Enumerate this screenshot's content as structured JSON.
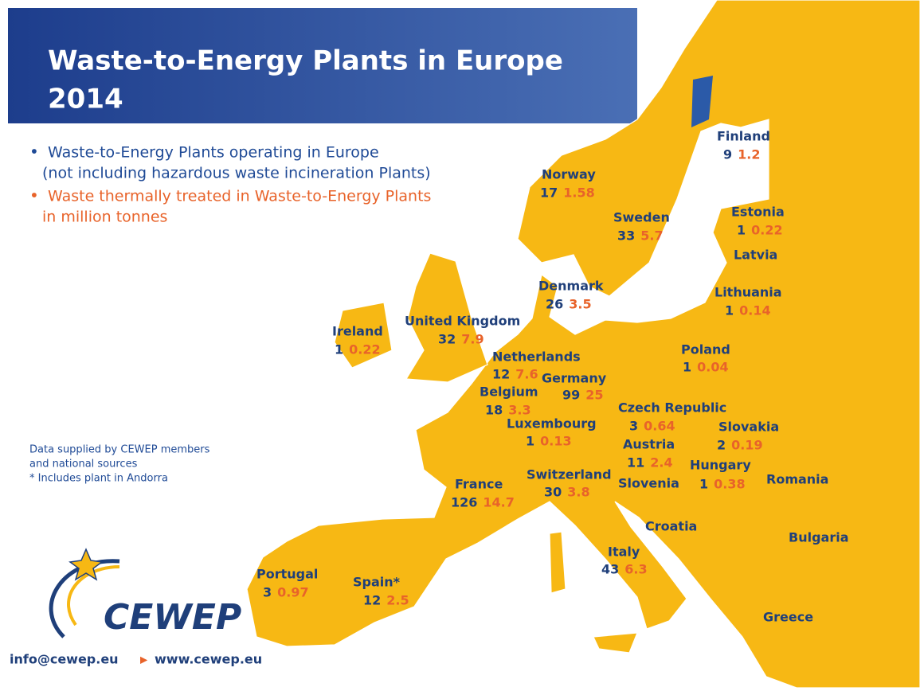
{
  "header": {
    "title": [
      "Waste-to-Energy Plants in Europe",
      "2014"
    ]
  },
  "legend": [
    {
      "lines": [
        "Waste-to-Energy Plants operating in Europe",
        "(not including hazardous waste incineration Plants)"
      ]
    },
    {
      "lines": [
        "Waste thermally treated in Waste-to-Energy Plants",
        "in million tonnes"
      ]
    }
  ],
  "notes": [
    "Data supplied by CEWEP members",
    "and national sources",
    "* Includes plant in Andorra"
  ],
  "countries": [
    {
      "name": "Finland",
      "plants": 9,
      "tonnes": 1.2
    },
    {
      "name": "Norway",
      "plants": 17,
      "tonnes": 1.58
    },
    {
      "name": "Sweden",
      "plants": 33,
      "tonnes": 5.7
    },
    {
      "name": "Estonia",
      "plants": 1,
      "tonnes": 0.22
    },
    {
      "name": "Latvia"
    },
    {
      "name": "Lithuania",
      "plants": 1,
      "tonnes": 0.14
    },
    {
      "name": "Denmark",
      "plants": 26,
      "tonnes": 3.5
    },
    {
      "name": "Ireland",
      "plants": 1,
      "tonnes": 0.22
    },
    {
      "name": "United Kingdom",
      "plants": 32,
      "tonnes": 7.9
    },
    {
      "name": "Netherlands",
      "plants": 12,
      "tonnes": 7.6
    },
    {
      "name": "Germany",
      "plants": 99,
      "tonnes": 25
    },
    {
      "name": "Poland",
      "plants": 1,
      "tonnes": 0.04
    },
    {
      "name": "Belgium",
      "plants": 18,
      "tonnes": 3.3
    },
    {
      "name": "Czech Republic",
      "plants": 3,
      "tonnes": 0.64
    },
    {
      "name": "Slovakia",
      "plants": 2,
      "tonnes": 0.19
    },
    {
      "name": "Luxembourg",
      "plants": 1,
      "tonnes": 0.13
    },
    {
      "name": "Austria",
      "plants": 11,
      "tonnes": 2.4
    },
    {
      "name": "Hungary",
      "plants": 1,
      "tonnes": 0.38
    },
    {
      "name": "France",
      "plants": 126,
      "tonnes": 14.7
    },
    {
      "name": "Switzerland",
      "plants": 30,
      "tonnes": 3.8
    },
    {
      "name": "Slovenia"
    },
    {
      "name": "Romania"
    },
    {
      "name": "Croatia"
    },
    {
      "name": "Bulgaria"
    },
    {
      "name": "Italy",
      "plants": 43,
      "tonnes": 6.3
    },
    {
      "name": "Portugal",
      "plants": 3,
      "tonnes": 0.97
    },
    {
      "name": "Spain*",
      "plants": 12,
      "tonnes": 2.5
    },
    {
      "name": "Greece"
    }
  ],
  "logo": "CEWEP",
  "footer": {
    "email": "info@cewep.eu",
    "website": "www.cewep.eu"
  }
}
